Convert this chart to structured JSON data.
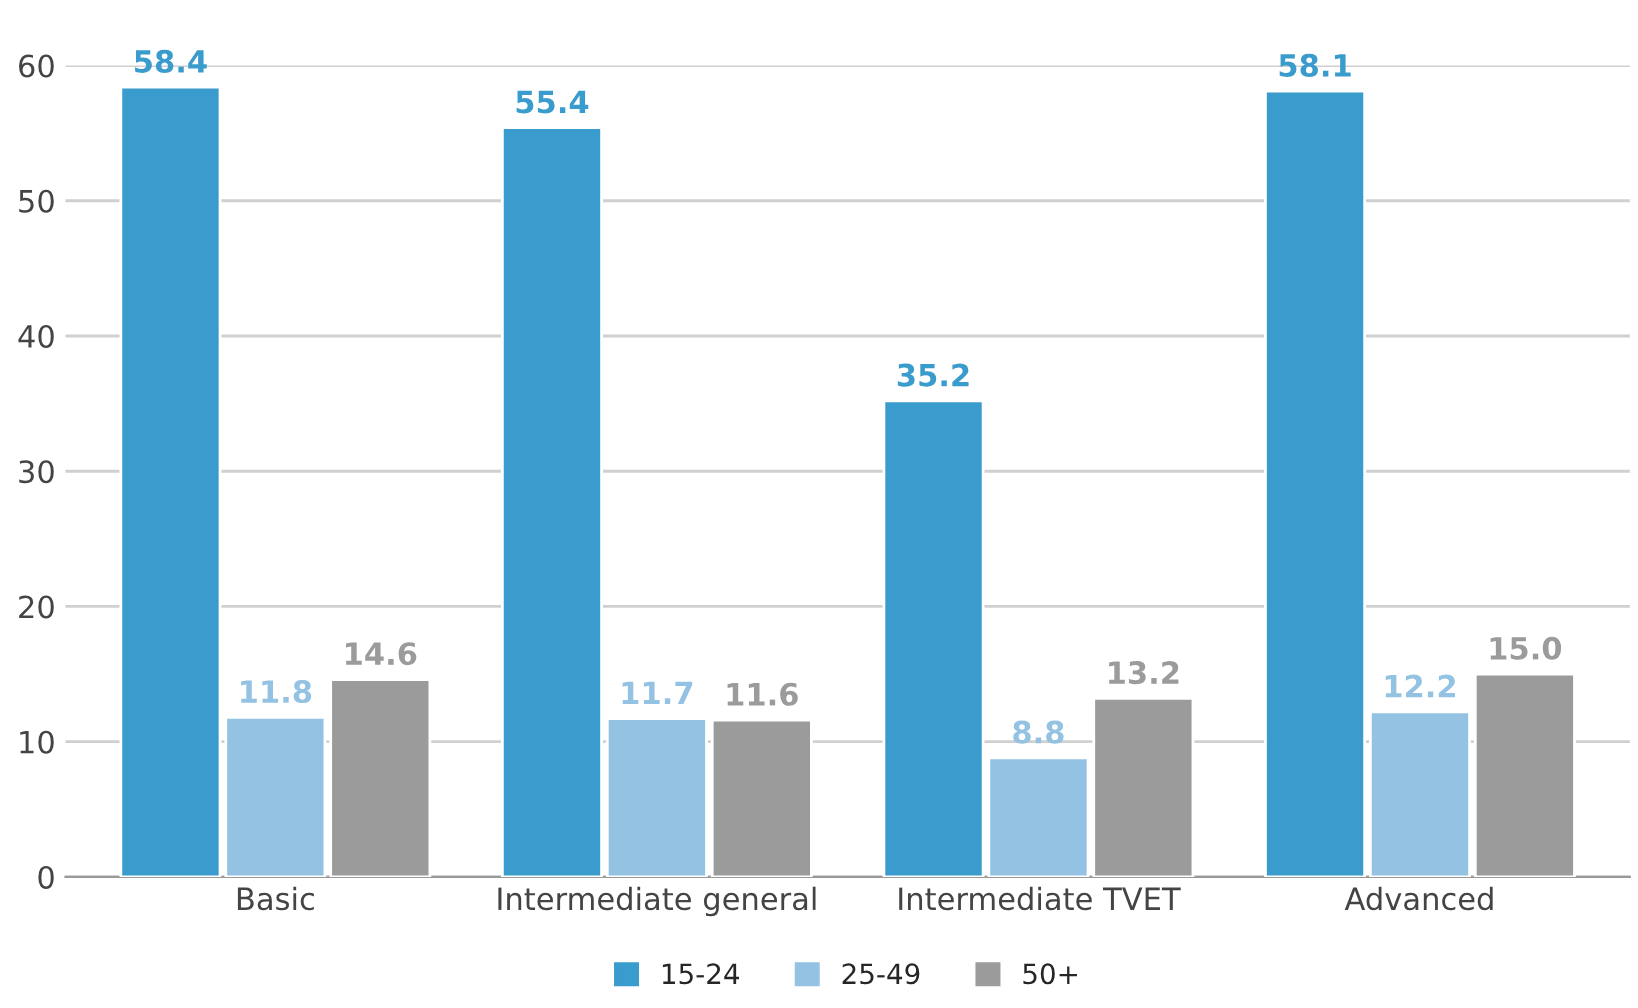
{
  "chart_data": {
    "type": "bar",
    "categories": [
      "Basic",
      "Intermediate general",
      "Intermediate TVET",
      "Advanced"
    ],
    "series": [
      {
        "name": "15-24",
        "color": "#3a9bcd",
        "values": [
          58.4,
          55.4,
          35.2,
          58.1
        ],
        "value_labels": [
          "58.4",
          "55.4",
          "35.2",
          "58.1"
        ]
      },
      {
        "name": "25-49",
        "color": "#93c2e2",
        "values": [
          11.8,
          11.7,
          8.8,
          12.2
        ],
        "value_labels": [
          "11.8",
          "11.7",
          "8.8",
          "12.2"
        ]
      },
      {
        "name": "50+",
        "color": "#9b9b9b",
        "values": [
          14.6,
          11.6,
          13.2,
          15.0
        ],
        "value_labels": [
          "14.6",
          "11.6",
          "13.2",
          "15.0"
        ]
      }
    ],
    "ylim": [
      0,
      60
    ],
    "yticks": [
      0,
      10,
      20,
      30,
      40,
      50,
      60
    ],
    "grid": "y",
    "legend": "bottom"
  }
}
